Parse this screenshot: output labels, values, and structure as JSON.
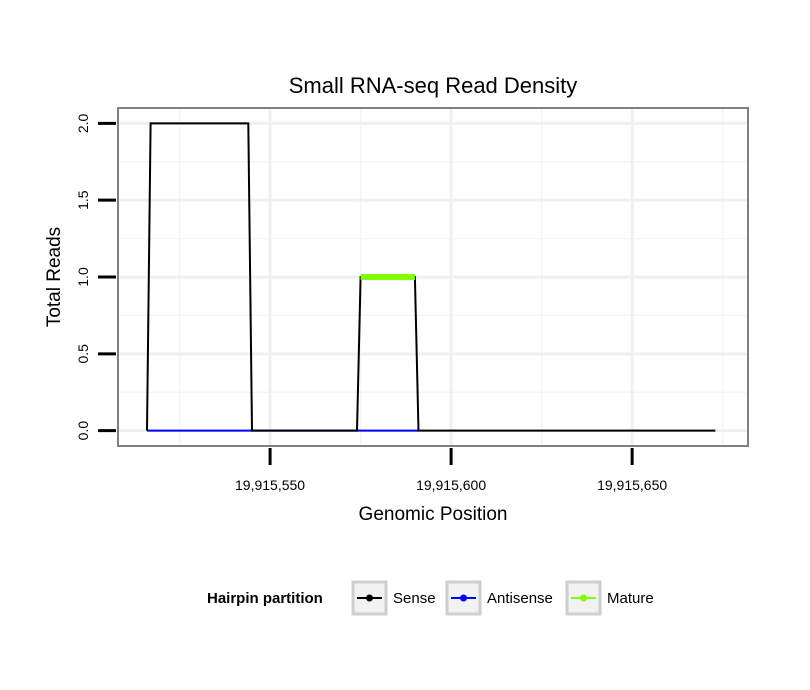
{
  "chart_data": {
    "type": "line",
    "title": "Small RNA-seq Read Density",
    "xlabel": "Genomic Position",
    "ylabel": "Total Reads",
    "xlim": [
      19915508,
      19915682
    ],
    "ylim": [
      -0.1,
      2.1
    ],
    "x_ticks": [
      19915550,
      19915600,
      19915650
    ],
    "x_tick_labels": [
      "19,915,550",
      "19,915,600",
      "19,915,650"
    ],
    "y_ticks": [
      0.0,
      0.5,
      1.0,
      1.5,
      2.0
    ],
    "y_tick_labels": [
      "0.0",
      "0.5",
      "1.0",
      "1.5",
      "2.0"
    ],
    "grid": true,
    "legend": {
      "title": "Hairpin partition",
      "position": "bottom",
      "entries": [
        "Sense",
        "Antisense",
        "Mature"
      ]
    },
    "series": [
      {
        "name": "Sense",
        "color": "#000000",
        "x": [
          19915516,
          19915517,
          19915544,
          19915545,
          19915574,
          19915575,
          19915590,
          19915591,
          19915673
        ],
        "y": [
          0,
          2,
          2,
          0,
          0,
          1,
          1,
          0,
          0
        ]
      },
      {
        "name": "Antisense",
        "color": "#0000ff",
        "x": [
          19915516,
          19915545,
          19915575,
          19915591
        ],
        "y": [
          0,
          0,
          0,
          0
        ]
      },
      {
        "name": "Mature",
        "color": "#7fff00",
        "x": [
          19915575,
          19915590
        ],
        "y": [
          1,
          1
        ]
      }
    ]
  }
}
